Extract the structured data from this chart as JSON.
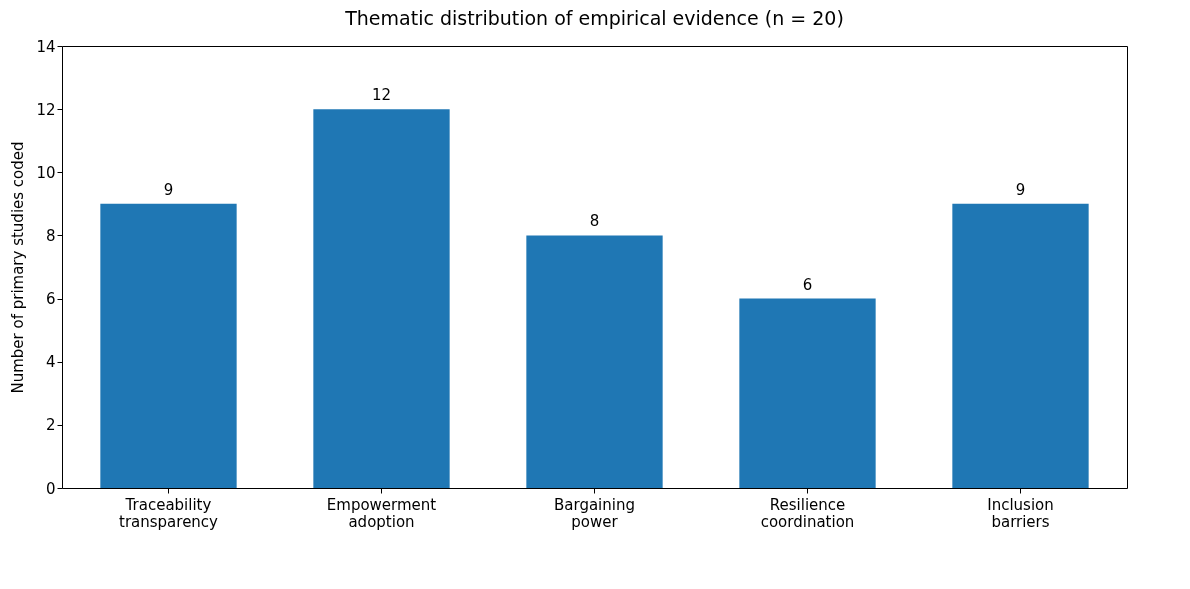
{
  "chart_data": {
    "type": "bar",
    "title": "Thematic distribution of empirical evidence (n = 20)",
    "ylabel": "Number of primary studies coded",
    "categories": [
      "Traceability transparency",
      "Empowerment adoption",
      "Bargaining power",
      "Resilience coordination",
      "Inclusion barriers"
    ],
    "values": [
      9,
      12,
      8,
      6,
      9
    ],
    "color": "#1f77b4",
    "ylim": [
      0,
      14
    ],
    "yticks": [
      0,
      2,
      4,
      6,
      8,
      10,
      12,
      14
    ],
    "grid": false,
    "data_labels": true
  }
}
